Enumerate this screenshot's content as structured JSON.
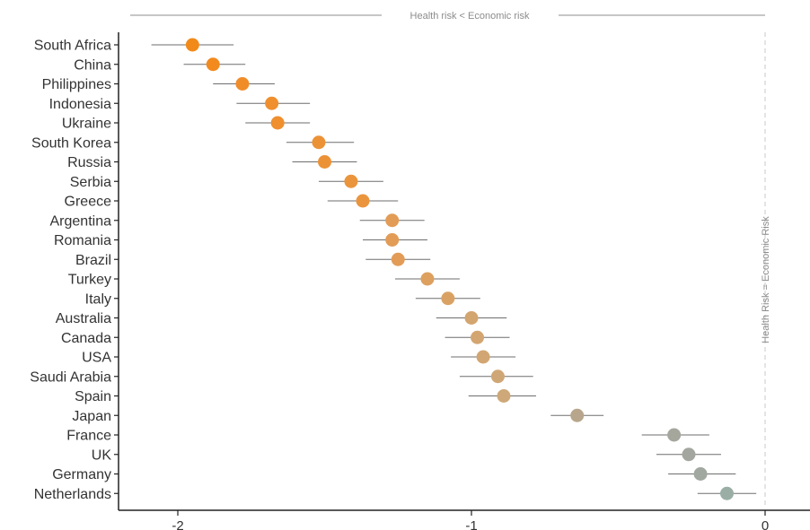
{
  "chart_data": {
    "type": "scatter",
    "x_ticks": [
      -2,
      -1,
      0
    ],
    "x_tick_labels": [
      "-2",
      "-1",
      "0"
    ],
    "xlim": [
      -2.2,
      0.15
    ],
    "grid": false,
    "top_annotation": "Health risk < Economic risk",
    "reference_line": {
      "x": 0,
      "label": "Health Risk = Economic Risk"
    },
    "countries": [
      {
        "name": "South Africa",
        "estimate": -1.95,
        "low": -2.09,
        "high": -1.81,
        "color": "#f28a1a"
      },
      {
        "name": "China",
        "estimate": -1.88,
        "low": -1.98,
        "high": -1.77,
        "color": "#f28a1e"
      },
      {
        "name": "Philippines",
        "estimate": -1.78,
        "low": -1.88,
        "high": -1.67,
        "color": "#f08d28"
      },
      {
        "name": "Indonesia",
        "estimate": -1.68,
        "low": -1.8,
        "high": -1.55,
        "color": "#ef8f2e"
      },
      {
        "name": "Ukraine",
        "estimate": -1.66,
        "low": -1.77,
        "high": -1.55,
        "color": "#ef8f2e"
      },
      {
        "name": "South Korea",
        "estimate": -1.52,
        "low": -1.63,
        "high": -1.4,
        "color": "#ec9236"
      },
      {
        "name": "Russia",
        "estimate": -1.5,
        "low": -1.61,
        "high": -1.39,
        "color": "#ec9236"
      },
      {
        "name": "Serbia",
        "estimate": -1.41,
        "low": -1.52,
        "high": -1.3,
        "color": "#ea953c"
      },
      {
        "name": "Greece",
        "estimate": -1.37,
        "low": -1.49,
        "high": -1.25,
        "color": "#ea953e"
      },
      {
        "name": "Argentina",
        "estimate": -1.27,
        "low": -1.38,
        "high": -1.16,
        "color": "#e29c55"
      },
      {
        "name": "Romania",
        "estimate": -1.27,
        "low": -1.37,
        "high": -1.15,
        "color": "#e29c55"
      },
      {
        "name": "Brazil",
        "estimate": -1.25,
        "low": -1.36,
        "high": -1.14,
        "color": "#e29c57"
      },
      {
        "name": "Turkey",
        "estimate": -1.15,
        "low": -1.26,
        "high": -1.04,
        "color": "#dda05f"
      },
      {
        "name": "Italy",
        "estimate": -1.08,
        "low": -1.19,
        "high": -0.97,
        "color": "#d9a264"
      },
      {
        "name": "Australia",
        "estimate": -1.0,
        "low": -1.12,
        "high": -0.88,
        "color": "#d3a56f"
      },
      {
        "name": "Canada",
        "estimate": -0.98,
        "low": -1.09,
        "high": -0.87,
        "color": "#d3a570"
      },
      {
        "name": "USA",
        "estimate": -0.96,
        "low": -1.07,
        "high": -0.85,
        "color": "#d2a672"
      },
      {
        "name": "Saudi Arabia",
        "estimate": -0.91,
        "low": -1.04,
        "high": -0.79,
        "color": "#cfa776"
      },
      {
        "name": "Spain",
        "estimate": -0.89,
        "low": -1.01,
        "high": -0.78,
        "color": "#cea878"
      },
      {
        "name": "Japan",
        "estimate": -0.64,
        "low": -0.73,
        "high": -0.55,
        "color": "#b8a68c"
      },
      {
        "name": "France",
        "estimate": -0.31,
        "low": -0.42,
        "high": -0.19,
        "color": "#a5a69c"
      },
      {
        "name": "UK",
        "estimate": -0.26,
        "low": -0.37,
        "high": -0.15,
        "color": "#a3a69e"
      },
      {
        "name": "Germany",
        "estimate": -0.22,
        "low": -0.33,
        "high": -0.1,
        "color": "#a1a8a0"
      },
      {
        "name": "Netherlands",
        "estimate": -0.13,
        "low": -0.23,
        "high": -0.03,
        "color": "#9aaea6"
      }
    ]
  }
}
